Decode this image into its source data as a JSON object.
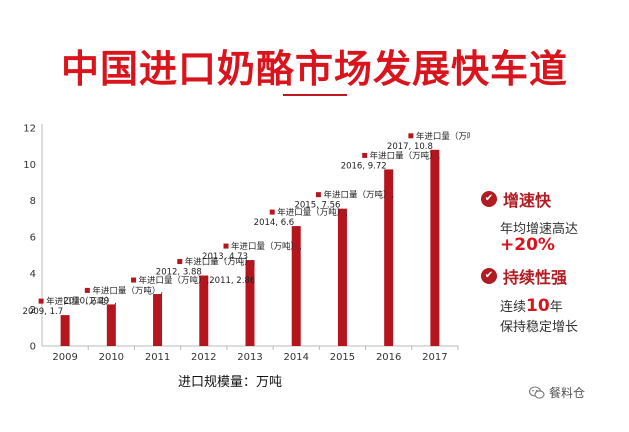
{
  "title": "中国进口奶酪市场发展快车道",
  "chart_data": {
    "type": "bar",
    "categories": [
      "2009",
      "2010",
      "2011",
      "2012",
      "2013",
      "2014",
      "2015",
      "2016",
      "2017"
    ],
    "values": [
      1.7,
      2.29,
      2.86,
      3.88,
      4.73,
      6.6,
      7.56,
      9.72,
      10.8
    ],
    "series_label": "年进口量（万吨）",
    "point_labels": [
      [
        "年进口量（万吨）,",
        "2009, 1.7"
      ],
      [
        "年进口量（万吨）,",
        "2010, 2.29"
      ],
      [
        "年进口量（万吨）,2011, 2.86"
      ],
      [
        "年进口量（万吨）,",
        "2012, 3.88"
      ],
      [
        "年进口量（万吨）,",
        "2013, 4.73"
      ],
      [
        "年进口量（万吨）,",
        "2014, 6.6"
      ],
      [
        "年进口量（万吨）,",
        "2015, 7.56"
      ],
      [
        "年进口量（万吨）,",
        "2016, 9.72"
      ],
      [
        "年进口量（万吨）,",
        "2017, 10.8"
      ]
    ],
    "yticks": [
      "0",
      "2",
      "4",
      "6",
      "8",
      "10",
      "12"
    ],
    "ylim": [
      0,
      12
    ],
    "xlabel": "进口规模量：万吨",
    "ylabel": "",
    "grid": false,
    "bar_color": "#b5161e"
  },
  "side": {
    "point1_title": "增速快",
    "point1_text": "年均增速高达",
    "point1_value": "+20%",
    "point2_title": "持续性强",
    "point2_prefix": "连续",
    "point2_value": "10",
    "point2_suffix": "年",
    "point2_text2": "保持稳定增长",
    "check_glyph": "✔"
  },
  "watermark": "餐料仓",
  "colors": {
    "accent": "#d9141c",
    "dark_red": "#b01c22"
  }
}
